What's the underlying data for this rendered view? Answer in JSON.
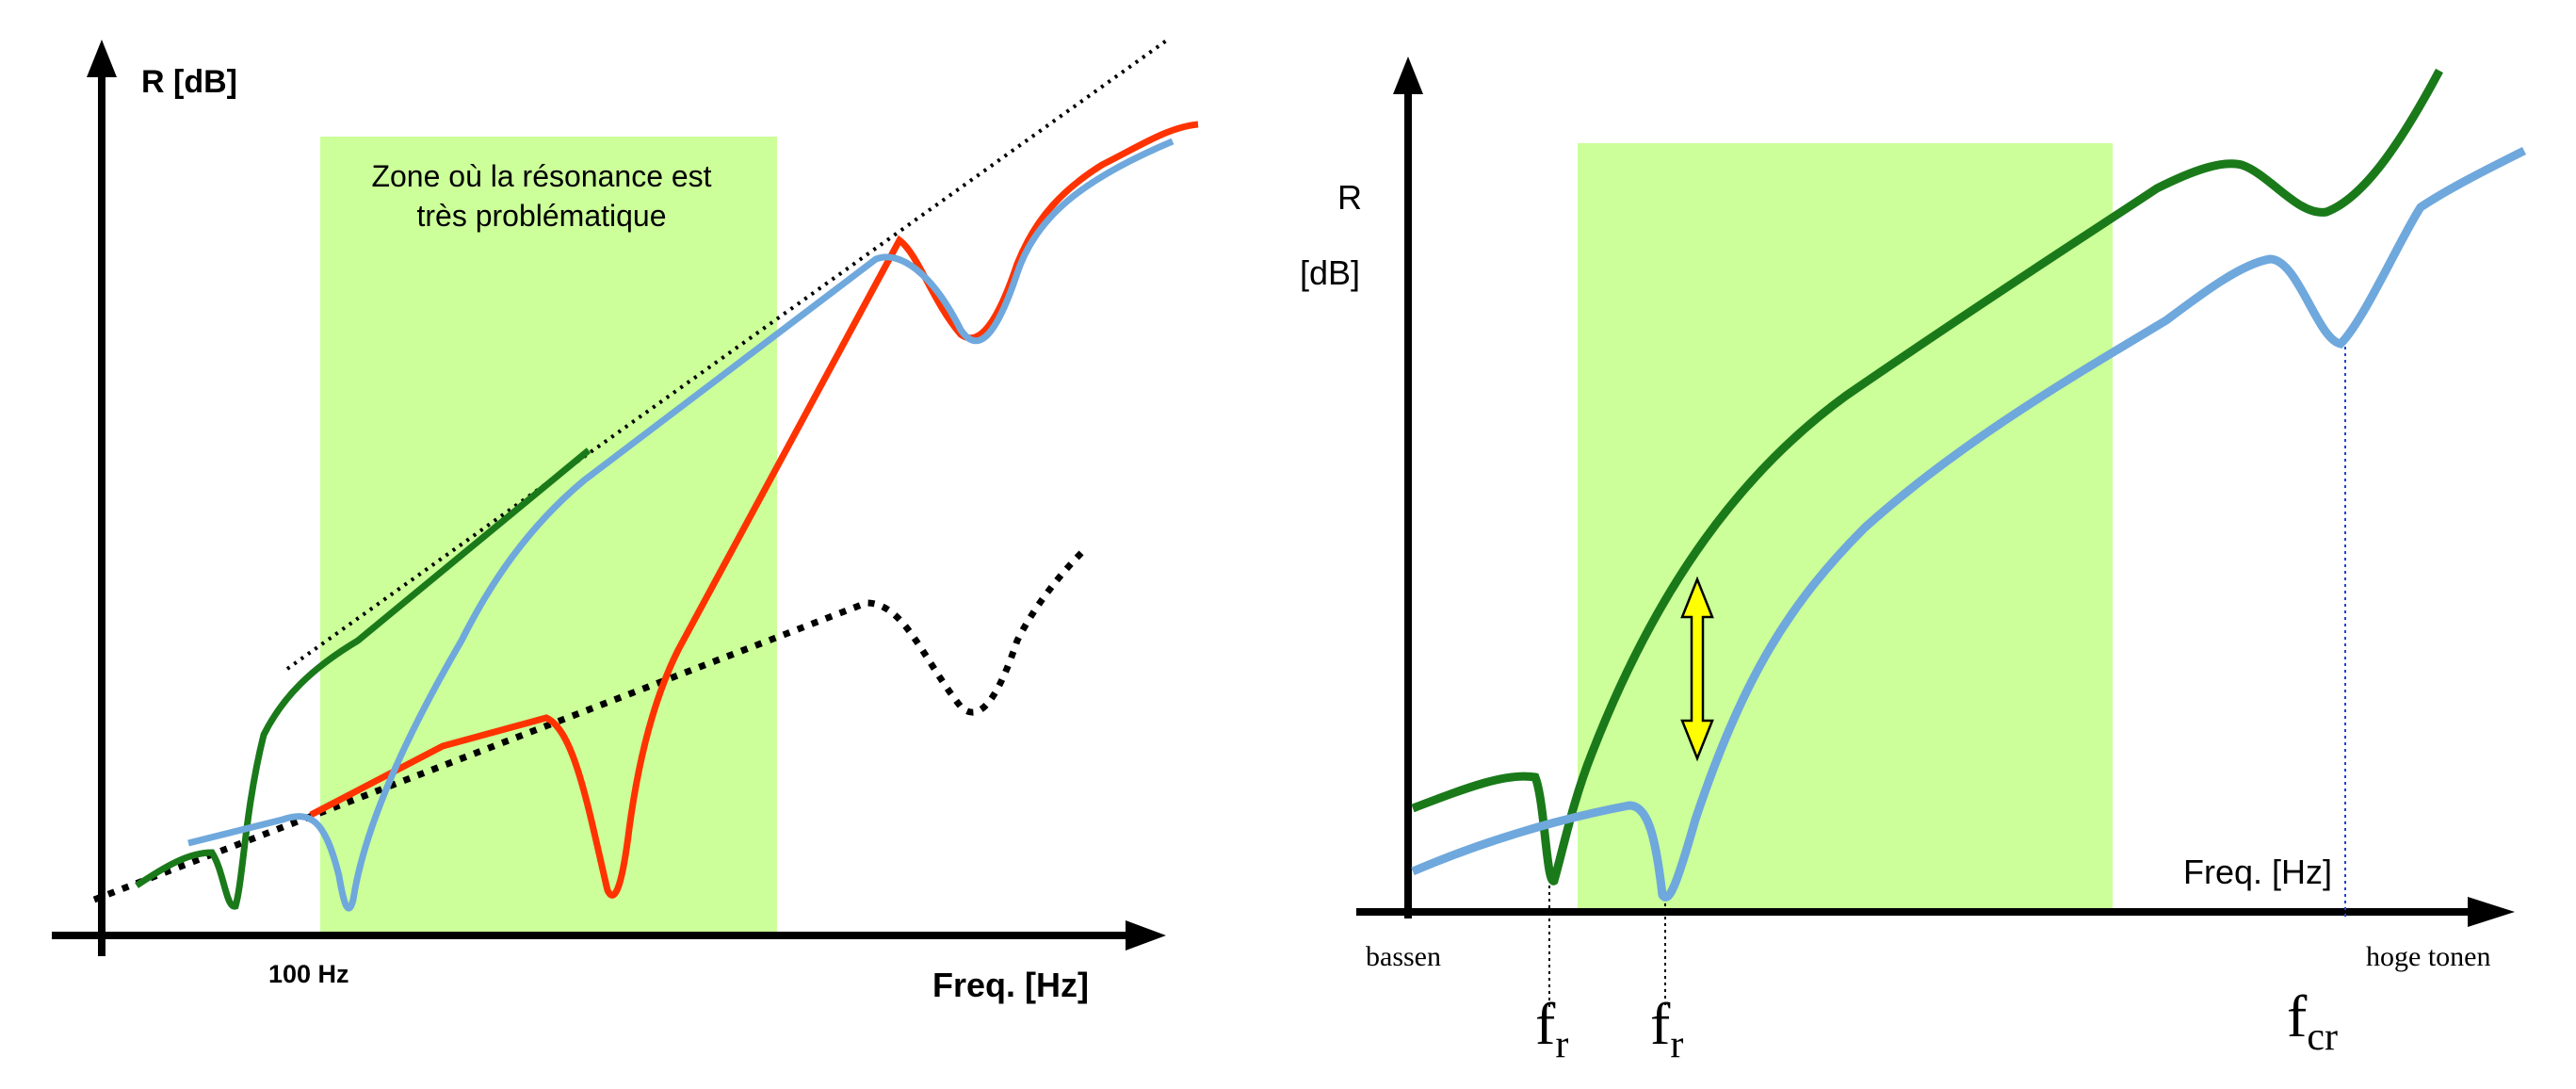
{
  "left_diagram": {
    "y_axis_label": "R [dB]",
    "x_axis_label": "Freq. [Hz]",
    "tick_label": "100 Hz",
    "zone_line1": "Zone où la résonance est",
    "zone_line2": "très problématique",
    "colors": {
      "zone": "#ccff99",
      "green": "#1a7a1a",
      "blue": "#6fa8dc",
      "red": "#ff3300",
      "dotted": "#000000"
    }
  },
  "right_diagram": {
    "y_axis_label_line1": "R",
    "y_axis_label_line2": "[dB]",
    "x_axis_label": "Freq. [Hz]",
    "low_label": "bassen",
    "high_label": "hoge tonen",
    "fr_1": {
      "main": "f",
      "sub": "r"
    },
    "fr_2": {
      "main": "f",
      "sub": "r"
    },
    "fcr": {
      "main": "f",
      "sub": "cr"
    },
    "colors": {
      "zone": "#ccff99",
      "green": "#1a7a1a",
      "blue": "#6fa8dc",
      "arrow": "#ffff00"
    }
  }
}
